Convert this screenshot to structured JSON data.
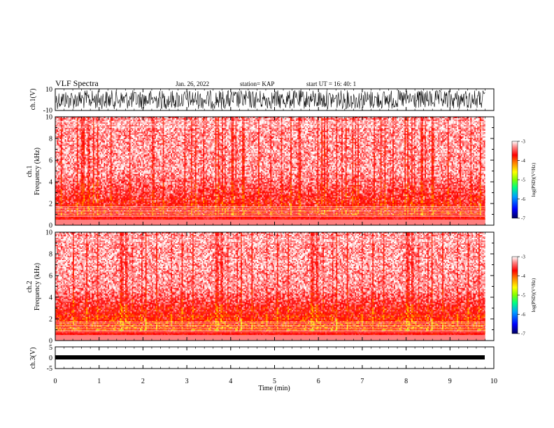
{
  "header": {
    "title": "VLF Spectra",
    "date": "Jan. 26, 2022",
    "station": "station= KAP",
    "start_ut": "start  UT  =    16: 40: 1"
  },
  "chart_data": [
    {
      "type": "line",
      "panel": "ch1-waveform",
      "ylabel": "ch.1(V)",
      "ylim": [
        -10,
        10
      ],
      "y_ticks": [
        "10",
        "-10"
      ],
      "x_range_min": [
        0,
        9.8
      ],
      "series_color": "#000000"
    },
    {
      "type": "heatmap",
      "panel": "ch1-spectrogram",
      "ylabel_line1": "ch.1",
      "ylabel_line2": "Frequency  (kHz)",
      "ylim": [
        0,
        10
      ],
      "y_ticks": [
        "0",
        "2",
        "4",
        "6",
        "8",
        "10"
      ],
      "x_range_min": [
        0,
        9.8
      ],
      "colorbar": {
        "label": "log(PSD)(V²/Hz)",
        "range": [
          -7,
          -3
        ],
        "ticks": [
          "-3",
          "-4",
          "-5",
          "-6",
          "-7"
        ]
      }
    },
    {
      "type": "heatmap",
      "panel": "ch2-spectrogram",
      "ylabel_line1": "ch.2",
      "ylabel_line2": "Frequency  (kHz)",
      "ylim": [
        0,
        10
      ],
      "y_ticks": [
        "0",
        "2",
        "4",
        "6",
        "8",
        "10"
      ],
      "x_range_min": [
        0,
        9.8
      ],
      "colorbar": {
        "label": "log(PSD)(V²/Hz)",
        "range": [
          -7,
          -3
        ],
        "ticks": [
          "-3",
          "-4",
          "-5",
          "-6",
          "-7"
        ]
      }
    },
    {
      "type": "line",
      "panel": "ch3-waveform",
      "ylabel": "ch.3(V)",
      "ylim": [
        -5,
        5
      ],
      "y_ticks": [
        "5",
        "0",
        "-5"
      ],
      "approx_value": -1,
      "x_range_min": [
        0,
        9.8
      ],
      "series_color": "#000000"
    }
  ],
  "x_axis": {
    "label": "Time  (min)",
    "ticks": [
      "0",
      "1",
      "2",
      "3",
      "4",
      "5",
      "6",
      "7",
      "8",
      "9",
      "10"
    ],
    "range": [
      0,
      10
    ]
  },
  "colors": {
    "background": "#ffffff",
    "axes": "#000000",
    "colormap": [
      "#000060",
      "#0000ff",
      "#00a0ff",
      "#00ff80",
      "#80ff00",
      "#ffff00",
      "#ff8000",
      "#ff0000",
      "#ff6060",
      "#ffffff"
    ]
  }
}
